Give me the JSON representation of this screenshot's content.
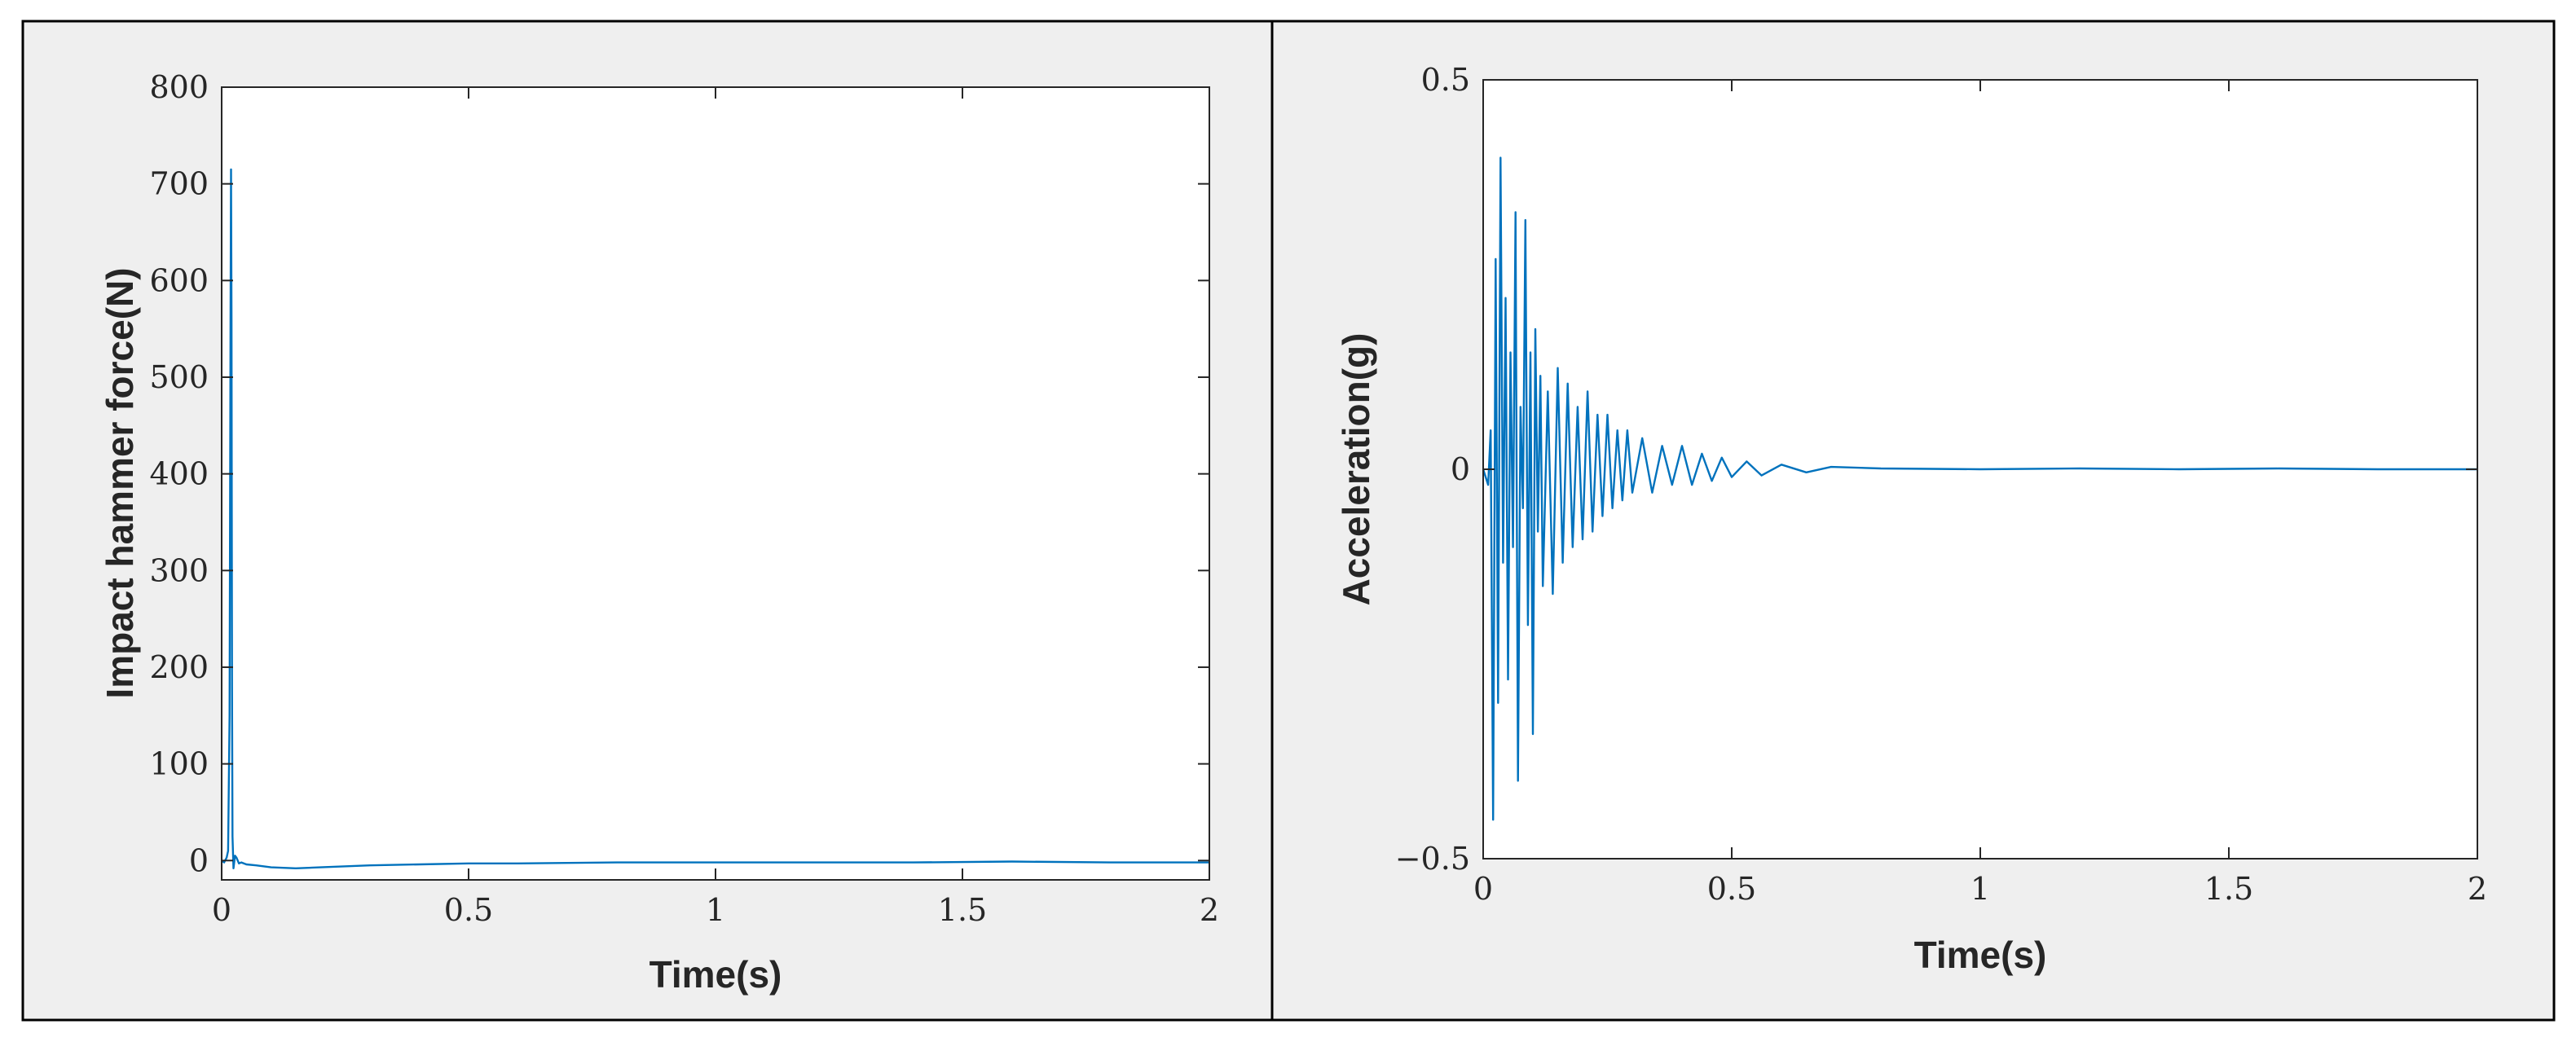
{
  "chart_data": [
    {
      "type": "line",
      "xlabel": "Time(s)",
      "ylabel": "Impact hammer force(N)",
      "xlim": [
        0,
        2
      ],
      "ylim": [
        -20,
        800
      ],
      "xticks": [
        0,
        0.5,
        1,
        1.5,
        2
      ],
      "xticklabels": [
        "0",
        "0.5",
        "1",
        "1.5",
        "2"
      ],
      "yticks": [
        0,
        100,
        200,
        300,
        400,
        500,
        600,
        700,
        800
      ],
      "yticklabels": [
        "0",
        "100",
        "200",
        "300",
        "400",
        "500",
        "600",
        "700",
        "800"
      ],
      "grid": false,
      "series": [
        {
          "color": "#0072bd",
          "x": [
            0,
            0.005,
            0.01,
            0.013,
            0.016,
            0.018,
            0.019,
            0.02,
            0.021,
            0.022,
            0.024,
            0.027,
            0.03,
            0.035,
            0.04,
            0.05,
            0.07,
            0.1,
            0.15,
            0.2,
            0.3,
            0.4,
            0.5,
            0.6,
            0.8,
            1.0,
            1.2,
            1.4,
            1.6,
            1.8,
            2.0
          ],
          "values": [
            0,
            -2,
            3,
            10,
            150,
            560,
            715,
            560,
            180,
            25,
            -8,
            5,
            3,
            -3,
            -2,
            -4,
            -5,
            -7,
            -8,
            -7,
            -5,
            -4,
            -3,
            -3,
            -2,
            -2,
            -2,
            -2,
            -1,
            -2,
            -2
          ]
        }
      ]
    },
    {
      "type": "line",
      "xlabel": "Time(s)",
      "ylabel": "Acceleration(g)",
      "xlim": [
        0,
        2
      ],
      "ylim": [
        -0.5,
        0.5
      ],
      "xticks": [
        0,
        0.5,
        1,
        1.5,
        2
      ],
      "xticklabels": [
        "0",
        "0.5",
        "1",
        "1.5",
        "2"
      ],
      "yticks": [
        -0.5,
        0,
        0.5
      ],
      "yticklabels": [
        "−0.5",
        "0",
        "0.5"
      ],
      "grid": false,
      "series": [
        {
          "color": "#0072bd",
          "x": [
            0,
            0.01,
            0.015,
            0.02,
            0.025,
            0.03,
            0.035,
            0.04,
            0.045,
            0.05,
            0.055,
            0.06,
            0.065,
            0.07,
            0.075,
            0.08,
            0.085,
            0.09,
            0.095,
            0.1,
            0.105,
            0.11,
            0.115,
            0.12,
            0.13,
            0.14,
            0.15,
            0.16,
            0.17,
            0.18,
            0.19,
            0.2,
            0.21,
            0.22,
            0.23,
            0.24,
            0.25,
            0.26,
            0.27,
            0.28,
            0.29,
            0.3,
            0.32,
            0.34,
            0.36,
            0.38,
            0.4,
            0.42,
            0.44,
            0.46,
            0.48,
            0.5,
            0.53,
            0.56,
            0.6,
            0.65,
            0.7,
            0.8,
            1.0,
            1.2,
            1.4,
            1.6,
            1.8,
            2.0
          ],
          "values": [
            0,
            -0.02,
            0.05,
            -0.45,
            0.27,
            -0.3,
            0.4,
            -0.12,
            0.22,
            -0.27,
            0.15,
            -0.1,
            0.33,
            -0.4,
            0.08,
            -0.05,
            0.32,
            -0.2,
            0.15,
            -0.34,
            0.18,
            -0.08,
            0.12,
            -0.15,
            0.1,
            -0.16,
            0.13,
            -0.12,
            0.11,
            -0.1,
            0.08,
            -0.09,
            0.1,
            -0.08,
            0.07,
            -0.06,
            0.07,
            -0.05,
            0.05,
            -0.04,
            0.05,
            -0.03,
            0.04,
            -0.03,
            0.03,
            -0.02,
            0.03,
            -0.02,
            0.02,
            -0.015,
            0.015,
            -0.01,
            0.01,
            -0.008,
            0.006,
            -0.004,
            0.003,
            0.001,
            0,
            0.001,
            0,
            0.001,
            0,
            0
          ]
        }
      ]
    }
  ]
}
